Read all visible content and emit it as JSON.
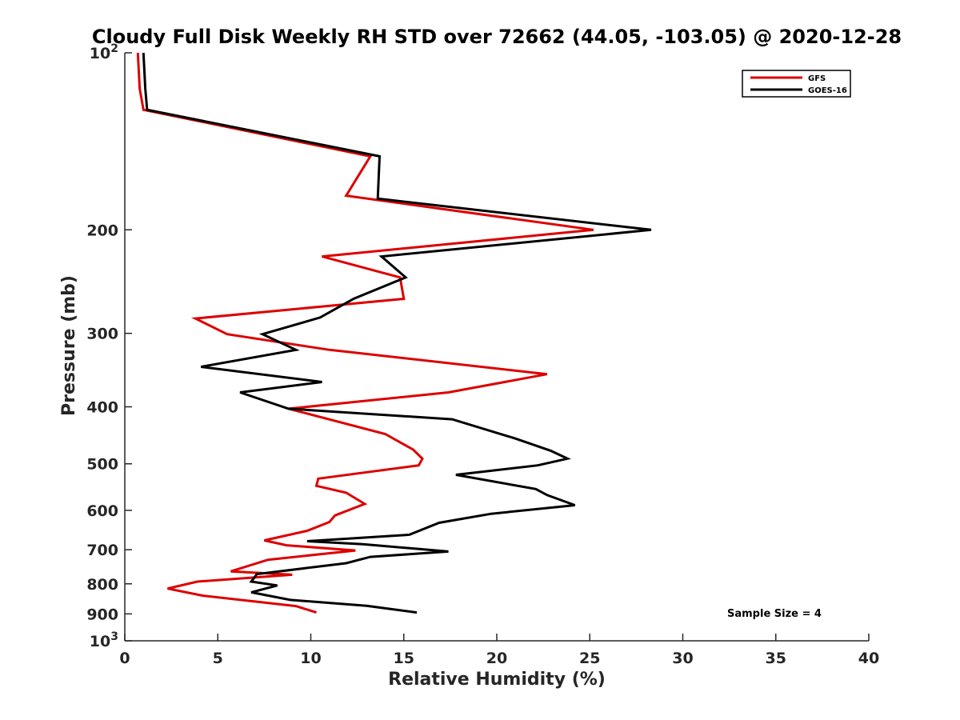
{
  "chart_data": {
    "type": "line",
    "title": "Cloudy Full Disk Weekly RH STD over 72662 (44.05, -103.05) @ 2020-12-28",
    "xlabel": "Relative Humidity (%)",
    "ylabel": "Pressure (mb)",
    "xlim": [
      0,
      40
    ],
    "ylim": [
      100,
      1000
    ],
    "yscale": "log",
    "y_reversed": true,
    "xticks": [
      0,
      5,
      10,
      15,
      20,
      25,
      30,
      35,
      40
    ],
    "xtick_labels": [
      "0",
      "5",
      "10",
      "15",
      "20",
      "25",
      "30",
      "35",
      "40"
    ],
    "yticks": [
      100,
      200,
      300,
      400,
      500,
      600,
      700,
      800,
      900,
      1000
    ],
    "ytick_labels": [
      {
        "base": "10",
        "exp": "2"
      },
      {
        "base": "200"
      },
      {
        "base": "300"
      },
      {
        "base": "400"
      },
      {
        "base": "500"
      },
      {
        "base": "600"
      },
      {
        "base": "700"
      },
      {
        "base": "800"
      },
      {
        "base": "900"
      },
      {
        "base": "10",
        "exp": "3"
      }
    ],
    "grid": false,
    "legend_position": "top-right",
    "annotation": "Sample Size = 4",
    "series": [
      {
        "name": "GFS",
        "color": "#dd0000",
        "points": [
          [
            0.7,
            100
          ],
          [
            0.8,
            115
          ],
          [
            1.0,
            125
          ],
          [
            13.2,
            150
          ],
          [
            11.9,
            175
          ],
          [
            25.2,
            200
          ],
          [
            10.6,
            222
          ],
          [
            14.8,
            241
          ],
          [
            15.0,
            262
          ],
          [
            3.8,
            283
          ],
          [
            5.5,
            301
          ],
          [
            11.0,
            320
          ],
          [
            22.7,
            352
          ],
          [
            17.4,
            378
          ],
          [
            8.8,
            403
          ],
          [
            14.0,
            445
          ],
          [
            15.5,
            473
          ],
          [
            16.0,
            490
          ],
          [
            15.8,
            503
          ],
          [
            10.4,
            530
          ],
          [
            10.3,
            545
          ],
          [
            11.9,
            560
          ],
          [
            12.9,
            585
          ],
          [
            11.3,
            612
          ],
          [
            11.0,
            628
          ],
          [
            9.8,
            650
          ],
          [
            7.5,
            675
          ],
          [
            8.7,
            688
          ],
          [
            12.4,
            702
          ],
          [
            7.7,
            728
          ],
          [
            5.7,
            762
          ],
          [
            9.0,
            772
          ],
          [
            3.9,
            793
          ],
          [
            2.3,
            815
          ],
          [
            4.2,
            838
          ],
          [
            9.2,
            873
          ],
          [
            10.3,
            895
          ]
        ]
      },
      {
        "name": "GOES-16",
        "color": "#000000",
        "points": [
          [
            1.0,
            100
          ],
          [
            1.1,
            115
          ],
          [
            1.2,
            125
          ],
          [
            13.7,
            150
          ],
          [
            13.6,
            177
          ],
          [
            28.3,
            200
          ],
          [
            13.8,
            222
          ],
          [
            15.1,
            241
          ],
          [
            12.3,
            262
          ],
          [
            10.5,
            282
          ],
          [
            7.4,
            301
          ],
          [
            9.2,
            320
          ],
          [
            4.1,
            342
          ],
          [
            10.6,
            363
          ],
          [
            6.2,
            378
          ],
          [
            8.8,
            403
          ],
          [
            17.6,
            420
          ],
          [
            21.0,
            453
          ],
          [
            22.9,
            475
          ],
          [
            23.8,
            490
          ],
          [
            22.2,
            503
          ],
          [
            17.8,
            522
          ],
          [
            22.1,
            552
          ],
          [
            22.7,
            565
          ],
          [
            24.2,
            588
          ],
          [
            19.7,
            608
          ],
          [
            16.9,
            630
          ],
          [
            15.3,
            660
          ],
          [
            9.8,
            677
          ],
          [
            12.8,
            685
          ],
          [
            17.4,
            705
          ],
          [
            13.2,
            720
          ],
          [
            11.9,
            738
          ],
          [
            7.1,
            770
          ],
          [
            6.8,
            793
          ],
          [
            8.2,
            805
          ],
          [
            6.8,
            827
          ],
          [
            8.9,
            852
          ],
          [
            13.0,
            872
          ],
          [
            15.7,
            895
          ]
        ]
      }
    ]
  }
}
